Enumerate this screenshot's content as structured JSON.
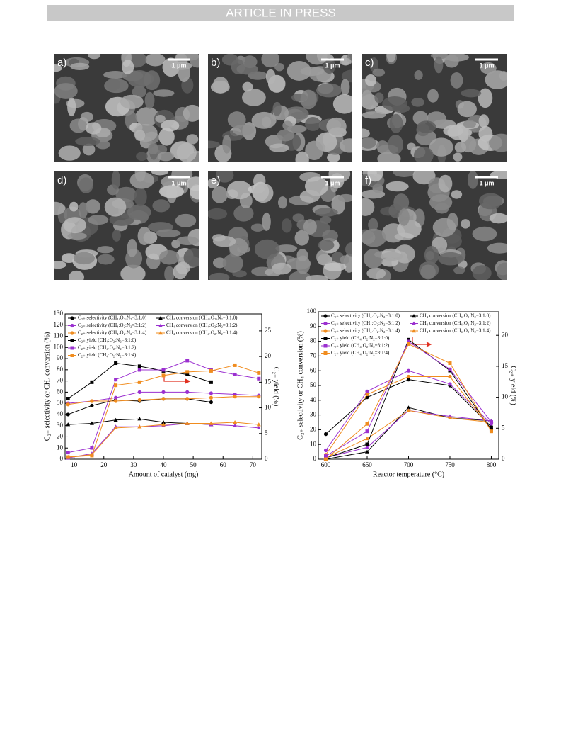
{
  "header": "ARTICLE IN PRESS",
  "panels": [
    {
      "label": "a)",
      "scale": "1 μm"
    },
    {
      "label": "b)",
      "scale": "1 μm"
    },
    {
      "label": "c)",
      "scale": "1 μm"
    },
    {
      "label": "d)",
      "scale": "1 μm"
    },
    {
      "label": "e)",
      "scale": "1 μm"
    },
    {
      "label": "f)",
      "scale": "1 μm"
    }
  ],
  "chart_data": [
    {
      "type": "line",
      "xlabel": "Amount of catalyst (mg)",
      "ylabel": "C₂₊ selectivity or CH₄ conversion (%)",
      "y2label": "C₂₊ yield (%)",
      "xlim": [
        7,
        73
      ],
      "xticks": [
        10,
        20,
        30,
        40,
        50,
        60,
        70
      ],
      "ylim": [
        0,
        130
      ],
      "yticks": [
        0,
        10,
        20,
        30,
        40,
        50,
        60,
        70,
        80,
        90,
        100,
        110,
        120,
        130
      ],
      "y2lim": [
        0,
        28.3
      ],
      "y2ticks": [
        0,
        5,
        10,
        15,
        20,
        25
      ],
      "series": [
        {
          "name": "C₂₊ selectivity (CH₄:O₂:N₂=3:1:0)",
          "color": "#000000",
          "marker": "circle",
          "x": [
            8,
            16,
            24,
            32,
            40,
            48,
            56
          ],
          "values": [
            40,
            48,
            53,
            52,
            54,
            54,
            51
          ]
        },
        {
          "name": "CH₄ conversion (CH₄:O₂:N₂=3:1:0)",
          "color": "#000000",
          "marker": "triangle",
          "x": [
            8,
            16,
            24,
            32,
            40,
            48,
            56
          ],
          "values": [
            31,
            32,
            35,
            36,
            33,
            32,
            31
          ]
        },
        {
          "name": "C₂₊ selectivity (CH₄:O₂:N₂=3:1:2)",
          "color": "#9b30d0",
          "marker": "circle",
          "x": [
            8,
            16,
            24,
            32,
            40,
            48,
            56,
            64,
            72
          ],
          "values": [
            50,
            52,
            55,
            60,
            60,
            60,
            59,
            58,
            57
          ]
        },
        {
          "name": "CH₄ conversion (CH₄:O₂:N₂=3:1:2)",
          "color": "#9b30d0",
          "marker": "triangle",
          "x": [
            8,
            16,
            24,
            32,
            40,
            48,
            56,
            64,
            72
          ],
          "values": [
            1,
            5,
            29,
            29,
            30,
            32,
            31,
            30,
            28
          ]
        },
        {
          "name": "C₂₊ selectivity (CH₄:O₂:N₂=3:1:4)",
          "color": "#f08c1e",
          "marker": "circle",
          "x": [
            8,
            16,
            24,
            32,
            40,
            48,
            56,
            64,
            72
          ],
          "values": [
            49,
            52,
            52,
            53,
            54,
            54,
            55,
            56,
            56
          ]
        },
        {
          "name": "CH₄ conversion (CH₄:O₂:N₂=3:1:4)",
          "color": "#f08c1e",
          "marker": "triangle",
          "x": [
            8,
            16,
            24,
            32,
            40,
            48,
            56,
            64,
            72
          ],
          "values": [
            2,
            4,
            28,
            29,
            31,
            32,
            32,
            33,
            31
          ]
        },
        {
          "name": "C₂₊ yield (CH₄:O₂:N₂=3:1:0)",
          "color": "#000000",
          "marker": "square",
          "axis": "y2",
          "x": [
            8,
            16,
            24,
            32,
            40,
            48,
            56
          ],
          "values": [
            11.8,
            15.0,
            18.7,
            18.1,
            17.2,
            16.5,
            15.0
          ]
        },
        {
          "name": "C₂₊ yield (CH₄:O₂:N₂=3:1:2)",
          "color": "#9b30d0",
          "marker": "square",
          "axis": "y2",
          "x": [
            8,
            16,
            24,
            32,
            40,
            48,
            56,
            64,
            72
          ],
          "values": [
            1.3,
            2.2,
            15.5,
            17.4,
            17.4,
            19.2,
            17.4,
            16.5,
            15.7
          ]
        },
        {
          "name": "C₂₊ yield (CH₄:O₂:N₂=3:1:4)",
          "color": "#f08c1e",
          "marker": "square",
          "axis": "y2",
          "x": [
            8,
            16,
            24,
            32,
            40,
            48,
            56,
            64,
            72
          ],
          "values": [
            0.4,
            0.7,
            14.4,
            15.0,
            16.3,
            17.0,
            17.2,
            18.3,
            16.8
          ]
        }
      ]
    },
    {
      "type": "line",
      "xlabel": "Reactor temperature (°C)",
      "ylabel": "C₂₊ selectivity or CH₄ conversion (%)",
      "y2label": "C₂₊ yield (%)",
      "xlim": [
        591,
        809
      ],
      "xticks": [
        600,
        650,
        700,
        750,
        800
      ],
      "ylim": [
        0,
        100
      ],
      "yticks": [
        0,
        10,
        20,
        30,
        40,
        50,
        60,
        70,
        80,
        90,
        100
      ],
      "y2lim": [
        0,
        23.8
      ],
      "y2ticks": [
        0,
        5,
        10,
        15,
        20
      ],
      "series": [
        {
          "name": "C₂₊ selectivity (CH₄:O₂:N₂=3:1:0)",
          "color": "#000000",
          "marker": "circle",
          "x": [
            600,
            650,
            700,
            750,
            800
          ],
          "values": [
            17,
            42,
            54,
            50,
            22
          ]
        },
        {
          "name": "CH₄ conversion (CH₄:O₂:N₂=3:1:0)",
          "color": "#000000",
          "marker": "triangle",
          "x": [
            600,
            650,
            700,
            750,
            800
          ],
          "values": [
            0,
            5,
            35,
            28,
            26
          ]
        },
        {
          "name": "C₂₊ selectivity (CH₄:O₂:N₂=3:1:2)",
          "color": "#9b30d0",
          "marker": "circle",
          "x": [
            600,
            650,
            700,
            750,
            800
          ],
          "values": [
            6,
            46,
            60,
            51,
            24
          ]
        },
        {
          "name": "CH₄ conversion (CH₄:O₂:N₂=3:1:2)",
          "color": "#9b30d0",
          "marker": "triangle",
          "x": [
            600,
            650,
            700,
            750,
            800
          ],
          "values": [
            1,
            8,
            33,
            29,
            26
          ]
        },
        {
          "name": "C₂₊ selectivity (CH₄:O₂:N₂=3:1:4)",
          "color": "#f08c1e",
          "marker": "circle",
          "x": [
            600,
            650,
            700,
            750,
            800
          ],
          "values": [
            3,
            44,
            56,
            56,
            20
          ]
        },
        {
          "name": "CH₄ conversion (CH₄:O₂:N₂=3:1:4)",
          "color": "#f08c1e",
          "marker": "triangle",
          "x": [
            600,
            650,
            700,
            750,
            800
          ],
          "values": [
            1,
            14,
            33,
            28,
            25
          ]
        },
        {
          "name": "C₂₊ yield (CH₄:O₂:N₂=3:1:0)",
          "color": "#000000",
          "marker": "square",
          "axis": "y2",
          "x": [
            600,
            650,
            700,
            750,
            800
          ],
          "values": [
            0.2,
            2.4,
            19.3,
            14.3,
            4.8
          ]
        },
        {
          "name": "C₂₊ yield (CH₄:O₂:N₂=3:1:2)",
          "color": "#9b30d0",
          "marker": "square",
          "axis": "y2",
          "x": [
            600,
            650,
            700,
            750,
            800
          ],
          "values": [
            0.5,
            4.5,
            19.0,
            14.5,
            6.0
          ]
        },
        {
          "name": "C₂₊ yield (CH₄:O₂:N₂=3:1:4)",
          "color": "#f08c1e",
          "marker": "square",
          "axis": "y2",
          "x": [
            600,
            650,
            700,
            750,
            800
          ],
          "values": [
            0,
            5.7,
            18.6,
            15.5,
            4.5
          ]
        }
      ]
    }
  ]
}
